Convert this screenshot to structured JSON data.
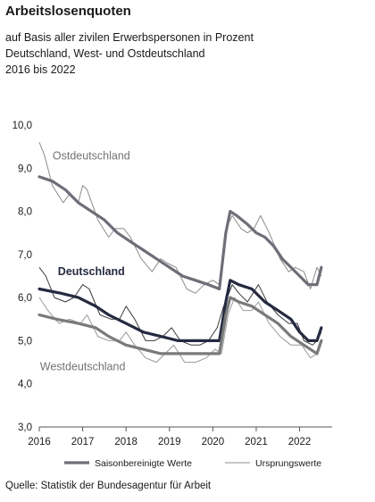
{
  "title": "Arbeitslosenquoten",
  "subtitle_lines": [
    "auf Basis aller zivilen Erwerbspersonen in Prozent",
    "Deutschland, West- und Ostdeutschland",
    "2016 bis 2022"
  ],
  "source": "Quelle: Statistik der Bundesagentur für Arbeit",
  "chart_data": {
    "type": "line",
    "x_start": 2016,
    "x_end": 2022.75,
    "xticks": [
      "2016",
      "2017",
      "2018",
      "2019",
      "2020",
      "2021",
      "2022"
    ],
    "ylim": [
      3.0,
      10.0
    ],
    "yticks": [
      "3,0",
      "4,0",
      "5,0",
      "6,0",
      "7,0",
      "8,0",
      "9,0",
      "10,0"
    ],
    "grid": false,
    "legend_position": "bottom",
    "legend": [
      {
        "label": "Saisonbereinigte Werte",
        "style": "thick"
      },
      {
        "label": "Ursprungswerte",
        "style": "thin"
      }
    ],
    "series": [
      {
        "name": "Ostdeutschland",
        "label_color": "#737373",
        "seasonal_color": "#6e6e78",
        "raw_color": "#8c8c8c",
        "seasonal": [
          [
            2016.0,
            8.8
          ],
          [
            2016.3,
            8.7
          ],
          [
            2016.6,
            8.5
          ],
          [
            2016.9,
            8.2
          ],
          [
            2017.2,
            8.0
          ],
          [
            2017.5,
            7.8
          ],
          [
            2017.8,
            7.5
          ],
          [
            2018.1,
            7.3
          ],
          [
            2018.4,
            7.1
          ],
          [
            2018.7,
            6.9
          ],
          [
            2019.0,
            6.7
          ],
          [
            2019.3,
            6.5
          ],
          [
            2019.6,
            6.4
          ],
          [
            2019.9,
            6.3
          ],
          [
            2020.15,
            6.2
          ],
          [
            2020.3,
            7.5
          ],
          [
            2020.4,
            8.0
          ],
          [
            2020.55,
            7.9
          ],
          [
            2020.8,
            7.7
          ],
          [
            2021.0,
            7.5
          ],
          [
            2021.2,
            7.4
          ],
          [
            2021.4,
            7.2
          ],
          [
            2021.6,
            6.9
          ],
          [
            2021.8,
            6.7
          ],
          [
            2022.0,
            6.5
          ],
          [
            2022.2,
            6.3
          ],
          [
            2022.4,
            6.3
          ],
          [
            2022.5,
            6.7
          ]
        ],
        "raw": [
          [
            2016.0,
            9.6
          ],
          [
            2016.12,
            9.3
          ],
          [
            2016.3,
            8.6
          ],
          [
            2016.55,
            8.2
          ],
          [
            2016.7,
            8.4
          ],
          [
            2016.9,
            8.2
          ],
          [
            2017.0,
            8.6
          ],
          [
            2017.1,
            8.5
          ],
          [
            2017.35,
            7.8
          ],
          [
            2017.6,
            7.4
          ],
          [
            2017.75,
            7.6
          ],
          [
            2017.95,
            7.6
          ],
          [
            2018.1,
            7.4
          ],
          [
            2018.35,
            6.9
          ],
          [
            2018.6,
            6.6
          ],
          [
            2018.8,
            6.9
          ],
          [
            2018.95,
            6.8
          ],
          [
            2019.15,
            6.7
          ],
          [
            2019.4,
            6.2
          ],
          [
            2019.6,
            6.1
          ],
          [
            2019.8,
            6.3
          ],
          [
            2020.0,
            6.4
          ],
          [
            2020.15,
            6.3
          ],
          [
            2020.3,
            7.6
          ],
          [
            2020.45,
            7.9
          ],
          [
            2020.65,
            7.6
          ],
          [
            2020.8,
            7.5
          ],
          [
            2020.95,
            7.6
          ],
          [
            2021.1,
            7.9
          ],
          [
            2021.3,
            7.5
          ],
          [
            2021.55,
            6.9
          ],
          [
            2021.75,
            6.6
          ],
          [
            2021.9,
            6.7
          ],
          [
            2022.1,
            6.6
          ],
          [
            2022.25,
            6.2
          ],
          [
            2022.4,
            6.7
          ],
          [
            2022.5,
            6.5
          ]
        ]
      },
      {
        "name": "Deutschland",
        "label_color": "#262a40",
        "seasonal_color": "#262a40",
        "raw_color": "#3a3a3a",
        "seasonal": [
          [
            2016.0,
            6.2
          ],
          [
            2016.5,
            6.1
          ],
          [
            2016.9,
            6.0
          ],
          [
            2017.3,
            5.8
          ],
          [
            2017.6,
            5.6
          ],
          [
            2018.0,
            5.4
          ],
          [
            2018.4,
            5.2
          ],
          [
            2018.8,
            5.1
          ],
          [
            2019.2,
            5.0
          ],
          [
            2019.6,
            5.0
          ],
          [
            2020.0,
            5.0
          ],
          [
            2020.15,
            5.0
          ],
          [
            2020.3,
            5.9
          ],
          [
            2020.4,
            6.4
          ],
          [
            2020.6,
            6.3
          ],
          [
            2020.9,
            6.2
          ],
          [
            2021.2,
            5.9
          ],
          [
            2021.5,
            5.7
          ],
          [
            2021.8,
            5.5
          ],
          [
            2022.0,
            5.2
          ],
          [
            2022.2,
            5.0
          ],
          [
            2022.4,
            5.0
          ],
          [
            2022.5,
            5.3
          ]
        ],
        "raw": [
          [
            2016.0,
            6.7
          ],
          [
            2016.15,
            6.5
          ],
          [
            2016.35,
            6.0
          ],
          [
            2016.6,
            5.9
          ],
          [
            2016.8,
            6.0
          ],
          [
            2017.0,
            6.3
          ],
          [
            2017.15,
            6.2
          ],
          [
            2017.4,
            5.6
          ],
          [
            2017.65,
            5.5
          ],
          [
            2017.85,
            5.5
          ],
          [
            2018.0,
            5.8
          ],
          [
            2018.2,
            5.5
          ],
          [
            2018.45,
            5.0
          ],
          [
            2018.65,
            5.0
          ],
          [
            2018.85,
            5.1
          ],
          [
            2019.05,
            5.3
          ],
          [
            2019.25,
            5.0
          ],
          [
            2019.5,
            4.9
          ],
          [
            2019.7,
            4.9
          ],
          [
            2019.9,
            5.0
          ],
          [
            2020.1,
            5.3
          ],
          [
            2020.25,
            5.8
          ],
          [
            2020.45,
            6.3
          ],
          [
            2020.6,
            6.1
          ],
          [
            2020.8,
            5.9
          ],
          [
            2021.05,
            6.3
          ],
          [
            2021.25,
            5.9
          ],
          [
            2021.5,
            5.6
          ],
          [
            2021.75,
            5.4
          ],
          [
            2021.95,
            5.4
          ],
          [
            2022.1,
            5.0
          ],
          [
            2022.3,
            4.9
          ],
          [
            2022.4,
            5.0
          ],
          [
            2022.5,
            5.2
          ]
        ]
      },
      {
        "name": "Westdeutschland",
        "label_color": "#737373",
        "seasonal_color": "#7a7a7a",
        "raw_color": "#9a9a9a",
        "seasonal": [
          [
            2016.0,
            5.6
          ],
          [
            2016.4,
            5.5
          ],
          [
            2016.9,
            5.4
          ],
          [
            2017.3,
            5.3
          ],
          [
            2017.6,
            5.1
          ],
          [
            2018.0,
            4.9
          ],
          [
            2018.4,
            4.8
          ],
          [
            2018.8,
            4.7
          ],
          [
            2019.3,
            4.7
          ],
          [
            2019.7,
            4.7
          ],
          [
            2020.15,
            4.7
          ],
          [
            2020.3,
            5.6
          ],
          [
            2020.4,
            6.0
          ],
          [
            2020.6,
            5.9
          ],
          [
            2020.9,
            5.8
          ],
          [
            2021.2,
            5.6
          ],
          [
            2021.5,
            5.4
          ],
          [
            2021.8,
            5.1
          ],
          [
            2022.1,
            4.9
          ],
          [
            2022.4,
            4.7
          ],
          [
            2022.5,
            5.0
          ]
        ],
        "raw": [
          [
            2016.0,
            6.0
          ],
          [
            2016.2,
            5.7
          ],
          [
            2016.45,
            5.4
          ],
          [
            2016.7,
            5.5
          ],
          [
            2016.95,
            5.4
          ],
          [
            2017.1,
            5.6
          ],
          [
            2017.35,
            5.1
          ],
          [
            2017.6,
            5.0
          ],
          [
            2017.85,
            5.0
          ],
          [
            2018.0,
            5.2
          ],
          [
            2018.2,
            4.9
          ],
          [
            2018.45,
            4.6
          ],
          [
            2018.7,
            4.5
          ],
          [
            2018.9,
            4.7
          ],
          [
            2019.1,
            4.9
          ],
          [
            2019.35,
            4.5
          ],
          [
            2019.6,
            4.5
          ],
          [
            2019.85,
            4.6
          ],
          [
            2020.05,
            4.8
          ],
          [
            2020.2,
            4.7
          ],
          [
            2020.35,
            5.6
          ],
          [
            2020.5,
            6.0
          ],
          [
            2020.7,
            5.7
          ],
          [
            2020.9,
            5.7
          ],
          [
            2021.05,
            5.9
          ],
          [
            2021.3,
            5.4
          ],
          [
            2021.55,
            5.1
          ],
          [
            2021.8,
            4.9
          ],
          [
            2022.05,
            4.9
          ],
          [
            2022.25,
            4.6
          ],
          [
            2022.4,
            4.7
          ],
          [
            2022.5,
            5.0
          ]
        ]
      }
    ]
  }
}
